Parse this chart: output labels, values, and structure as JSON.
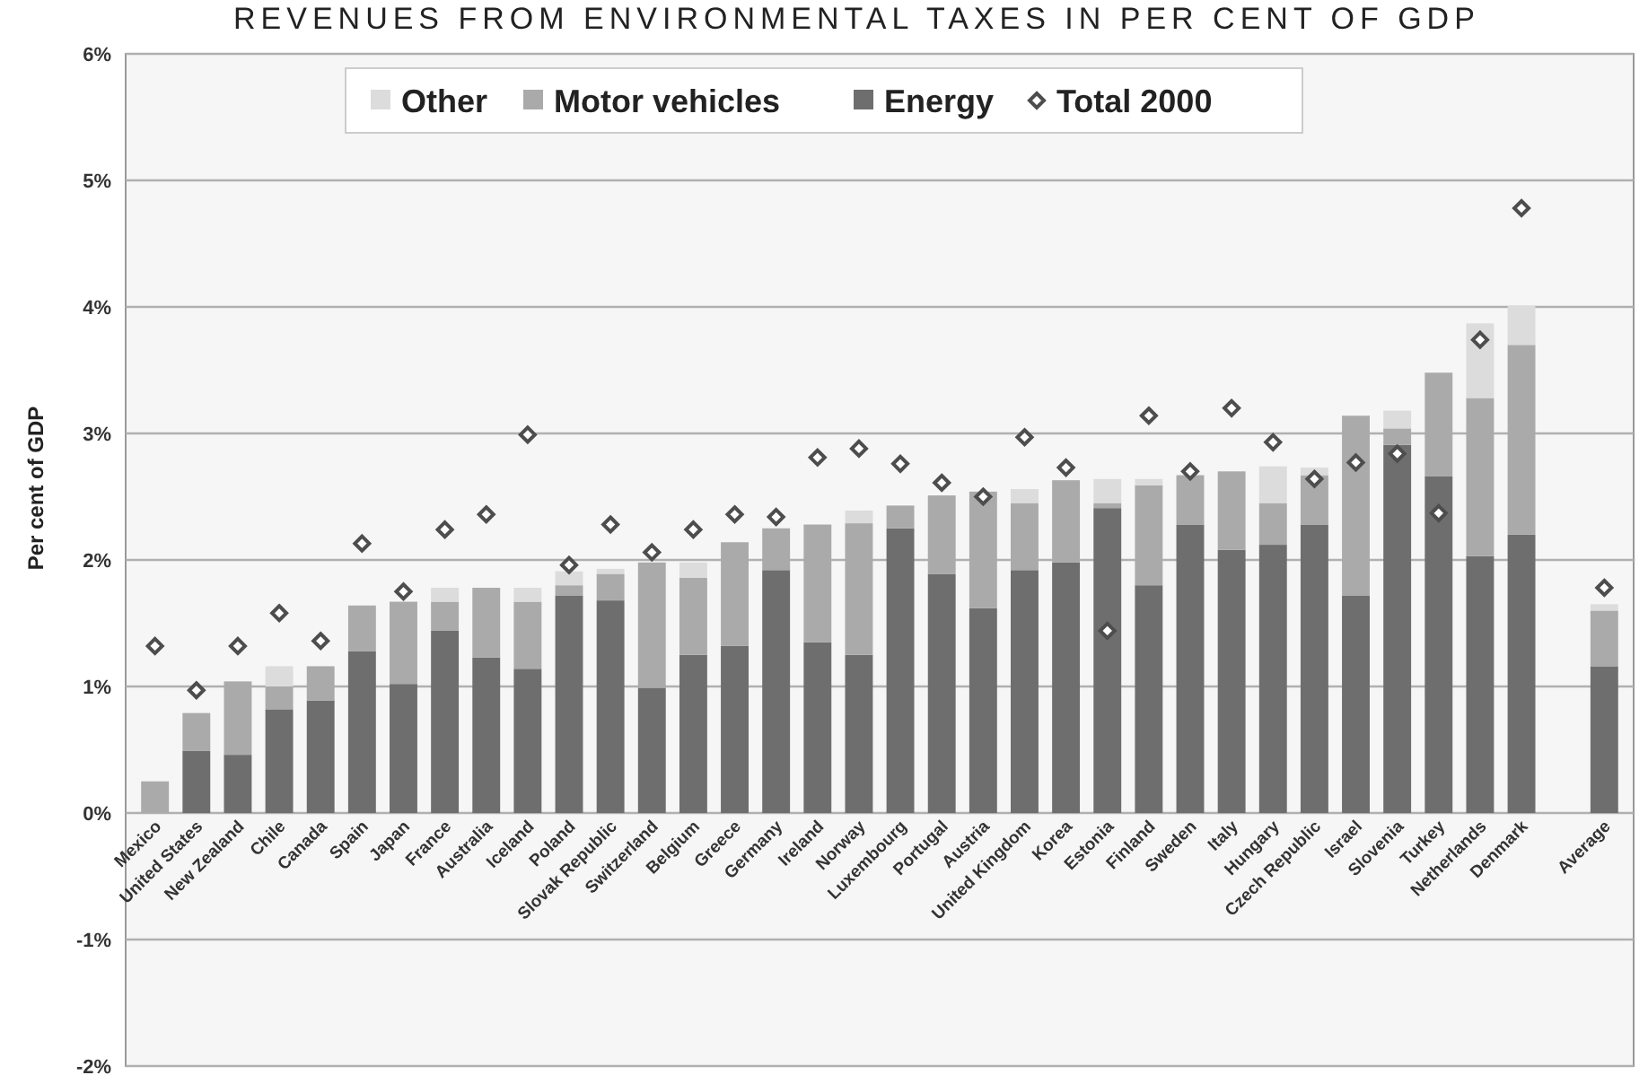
{
  "chart_data": {
    "type": "bar",
    "title": "REVENUES FROM ENVIRONMENTAL TAXES IN PER CENT OF GDP",
    "ylabel": "Per cent of GDP",
    "categories": [
      "Mexico",
      "United States",
      "New Zealand",
      "Chile",
      "Canada",
      "Spain",
      "Japan",
      "France",
      "Australia",
      "Iceland",
      "Poland",
      "Slovak Republic",
      "Switzerland",
      "Belgium",
      "Greece",
      "Germany",
      "Ireland",
      "Norway",
      "Luxembourg",
      "Portugal",
      "Austria",
      "United Kingdom",
      "Korea",
      "Estonia",
      "Finland",
      "Sweden",
      "Italy",
      "Hungary",
      "Czech Republic",
      "Israel",
      "Slovenia",
      "Turkey",
      "Netherlands",
      "Denmark",
      null,
      "Average"
    ],
    "stacked": true,
    "series": [
      {
        "name": "Energy",
        "color": "#6e6e6e",
        "values": [
          0,
          0.49,
          0.46,
          0.82,
          0.89,
          1.28,
          1.02,
          1.44,
          1.23,
          1.14,
          1.72,
          1.68,
          0.99,
          1.25,
          1.32,
          1.92,
          1.35,
          1.25,
          2.25,
          1.89,
          1.62,
          1.92,
          1.98,
          2.41,
          1.8,
          2.28,
          2.08,
          2.12,
          2.28,
          1.72,
          2.91,
          2.66,
          2.03,
          2.2,
          null,
          1.16
        ]
      },
      {
        "name": "Motor vehicles",
        "color": "#aaaaaa",
        "values": [
          0.25,
          0.3,
          0.58,
          0.18,
          0.27,
          0.36,
          0.65,
          0.23,
          0.55,
          0.53,
          0.08,
          0.21,
          0.99,
          0.61,
          0.82,
          0.33,
          0.93,
          1.04,
          0.18,
          0.62,
          0.92,
          0.53,
          0.65,
          0.04,
          0.79,
          0.39,
          0.62,
          0.33,
          0.39,
          1.42,
          0.13,
          0.82,
          1.25,
          1.5,
          null,
          0.44
        ]
      },
      {
        "name": "Other",
        "color": "#dcdcdc",
        "values": [
          0,
          0,
          0,
          0.16,
          0,
          0,
          0,
          0.11,
          0,
          0.11,
          0.11,
          0.04,
          0,
          0.12,
          0,
          0,
          0,
          0.1,
          0,
          0,
          0,
          0.11,
          0,
          0.19,
          0.05,
          0,
          0,
          0.29,
          0.06,
          0,
          0.14,
          0,
          0.59,
          0.31,
          null,
          0.05
        ]
      },
      {
        "name": "Total 2000",
        "type": "scatter",
        "color": "#4d4d4d",
        "marker": "diamond",
        "values": [
          1.32,
          0.97,
          1.32,
          1.58,
          1.36,
          2.13,
          1.75,
          2.24,
          2.36,
          2.99,
          1.96,
          2.28,
          2.06,
          2.24,
          2.36,
          2.34,
          2.81,
          2.88,
          2.76,
          2.61,
          2.5,
          2.97,
          2.73,
          1.44,
          3.14,
          2.7,
          3.2,
          2.93,
          2.64,
          2.77,
          2.84,
          2.37,
          3.74,
          4.78,
          null,
          1.78
        ]
      }
    ],
    "ylim": [
      -2,
      6
    ],
    "yticks": [
      {
        "value": -2,
        "label": "-2%"
      },
      {
        "value": -1,
        "label": "-1%"
      },
      {
        "value": 0,
        "label": "0%"
      },
      {
        "value": 1,
        "label": "1%"
      },
      {
        "value": 2,
        "label": "2%"
      },
      {
        "value": 3,
        "label": "3%"
      },
      {
        "value": 4,
        "label": "4%"
      },
      {
        "value": 5,
        "label": "5%"
      },
      {
        "value": 6,
        "label": "6%"
      }
    ],
    "grid": "y",
    "legend": "top"
  }
}
